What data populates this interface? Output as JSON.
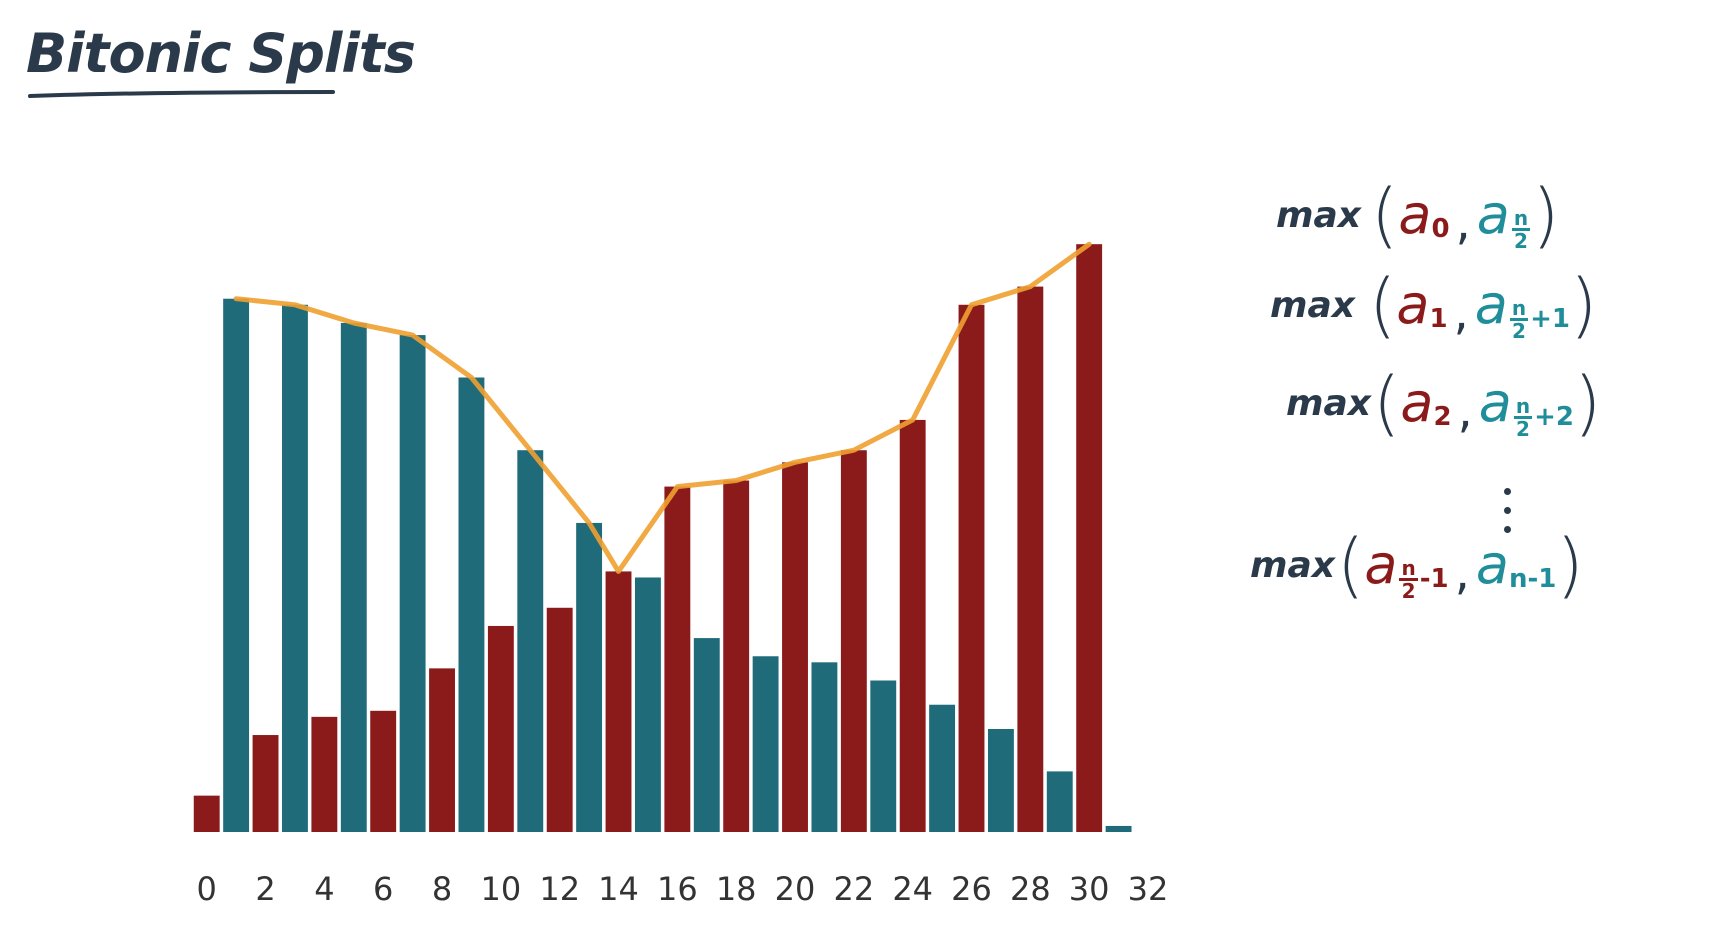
{
  "title": "Bitonic Splits",
  "chart_data": {
    "type": "bar",
    "x_ticks": [
      "0",
      "2",
      "4",
      "6",
      "8",
      "10",
      "12",
      "14",
      "16",
      "18",
      "20",
      "22",
      "24",
      "26",
      "28",
      "30",
      "32"
    ],
    "xlim": [
      -0.5,
      32
    ],
    "ylim": [
      0,
      100
    ],
    "series": [
      {
        "color": "#8b1a1a",
        "x": [
          0,
          2,
          4,
          6,
          8,
          10,
          12,
          14,
          16,
          18,
          20,
          22,
          24,
          26,
          28,
          30
        ],
        "values": [
          6,
          16,
          19,
          20,
          27,
          34,
          37,
          43,
          57,
          58,
          61,
          63,
          68,
          87,
          90,
          97
        ]
      },
      {
        "color": "#1f6b7a",
        "x": [
          1,
          3,
          5,
          7,
          9,
          11,
          13,
          15,
          17,
          19,
          21,
          23,
          25,
          27,
          29,
          31
        ],
        "values": [
          88,
          87,
          84,
          82,
          75,
          63,
          51,
          42,
          32,
          29,
          28,
          25,
          21,
          17,
          10,
          1
        ]
      }
    ],
    "max_line": {
      "color": "#f0a030",
      "x": [
        1,
        3,
        5,
        7,
        9,
        11,
        13,
        14,
        16,
        18,
        20,
        22,
        24,
        26,
        28,
        30
      ],
      "values": [
        88,
        87,
        84,
        82,
        75,
        63,
        51,
        43,
        57,
        58,
        61,
        63,
        68,
        87,
        90,
        97
      ]
    }
  },
  "formulas": {
    "fn": "max",
    "open_paren": "(",
    "close_paren": ")",
    "comma": ",",
    "a": "a",
    "n": "n",
    "two": "2",
    "rows": [
      {
        "left_sub": "0",
        "right_suffix": ""
      },
      {
        "left_sub": "1",
        "right_suffix": "+1"
      },
      {
        "left_sub": "2",
        "right_suffix": "+2"
      }
    ],
    "last_row": {
      "left_suffix": "-1",
      "right_sub": "n-1"
    }
  }
}
